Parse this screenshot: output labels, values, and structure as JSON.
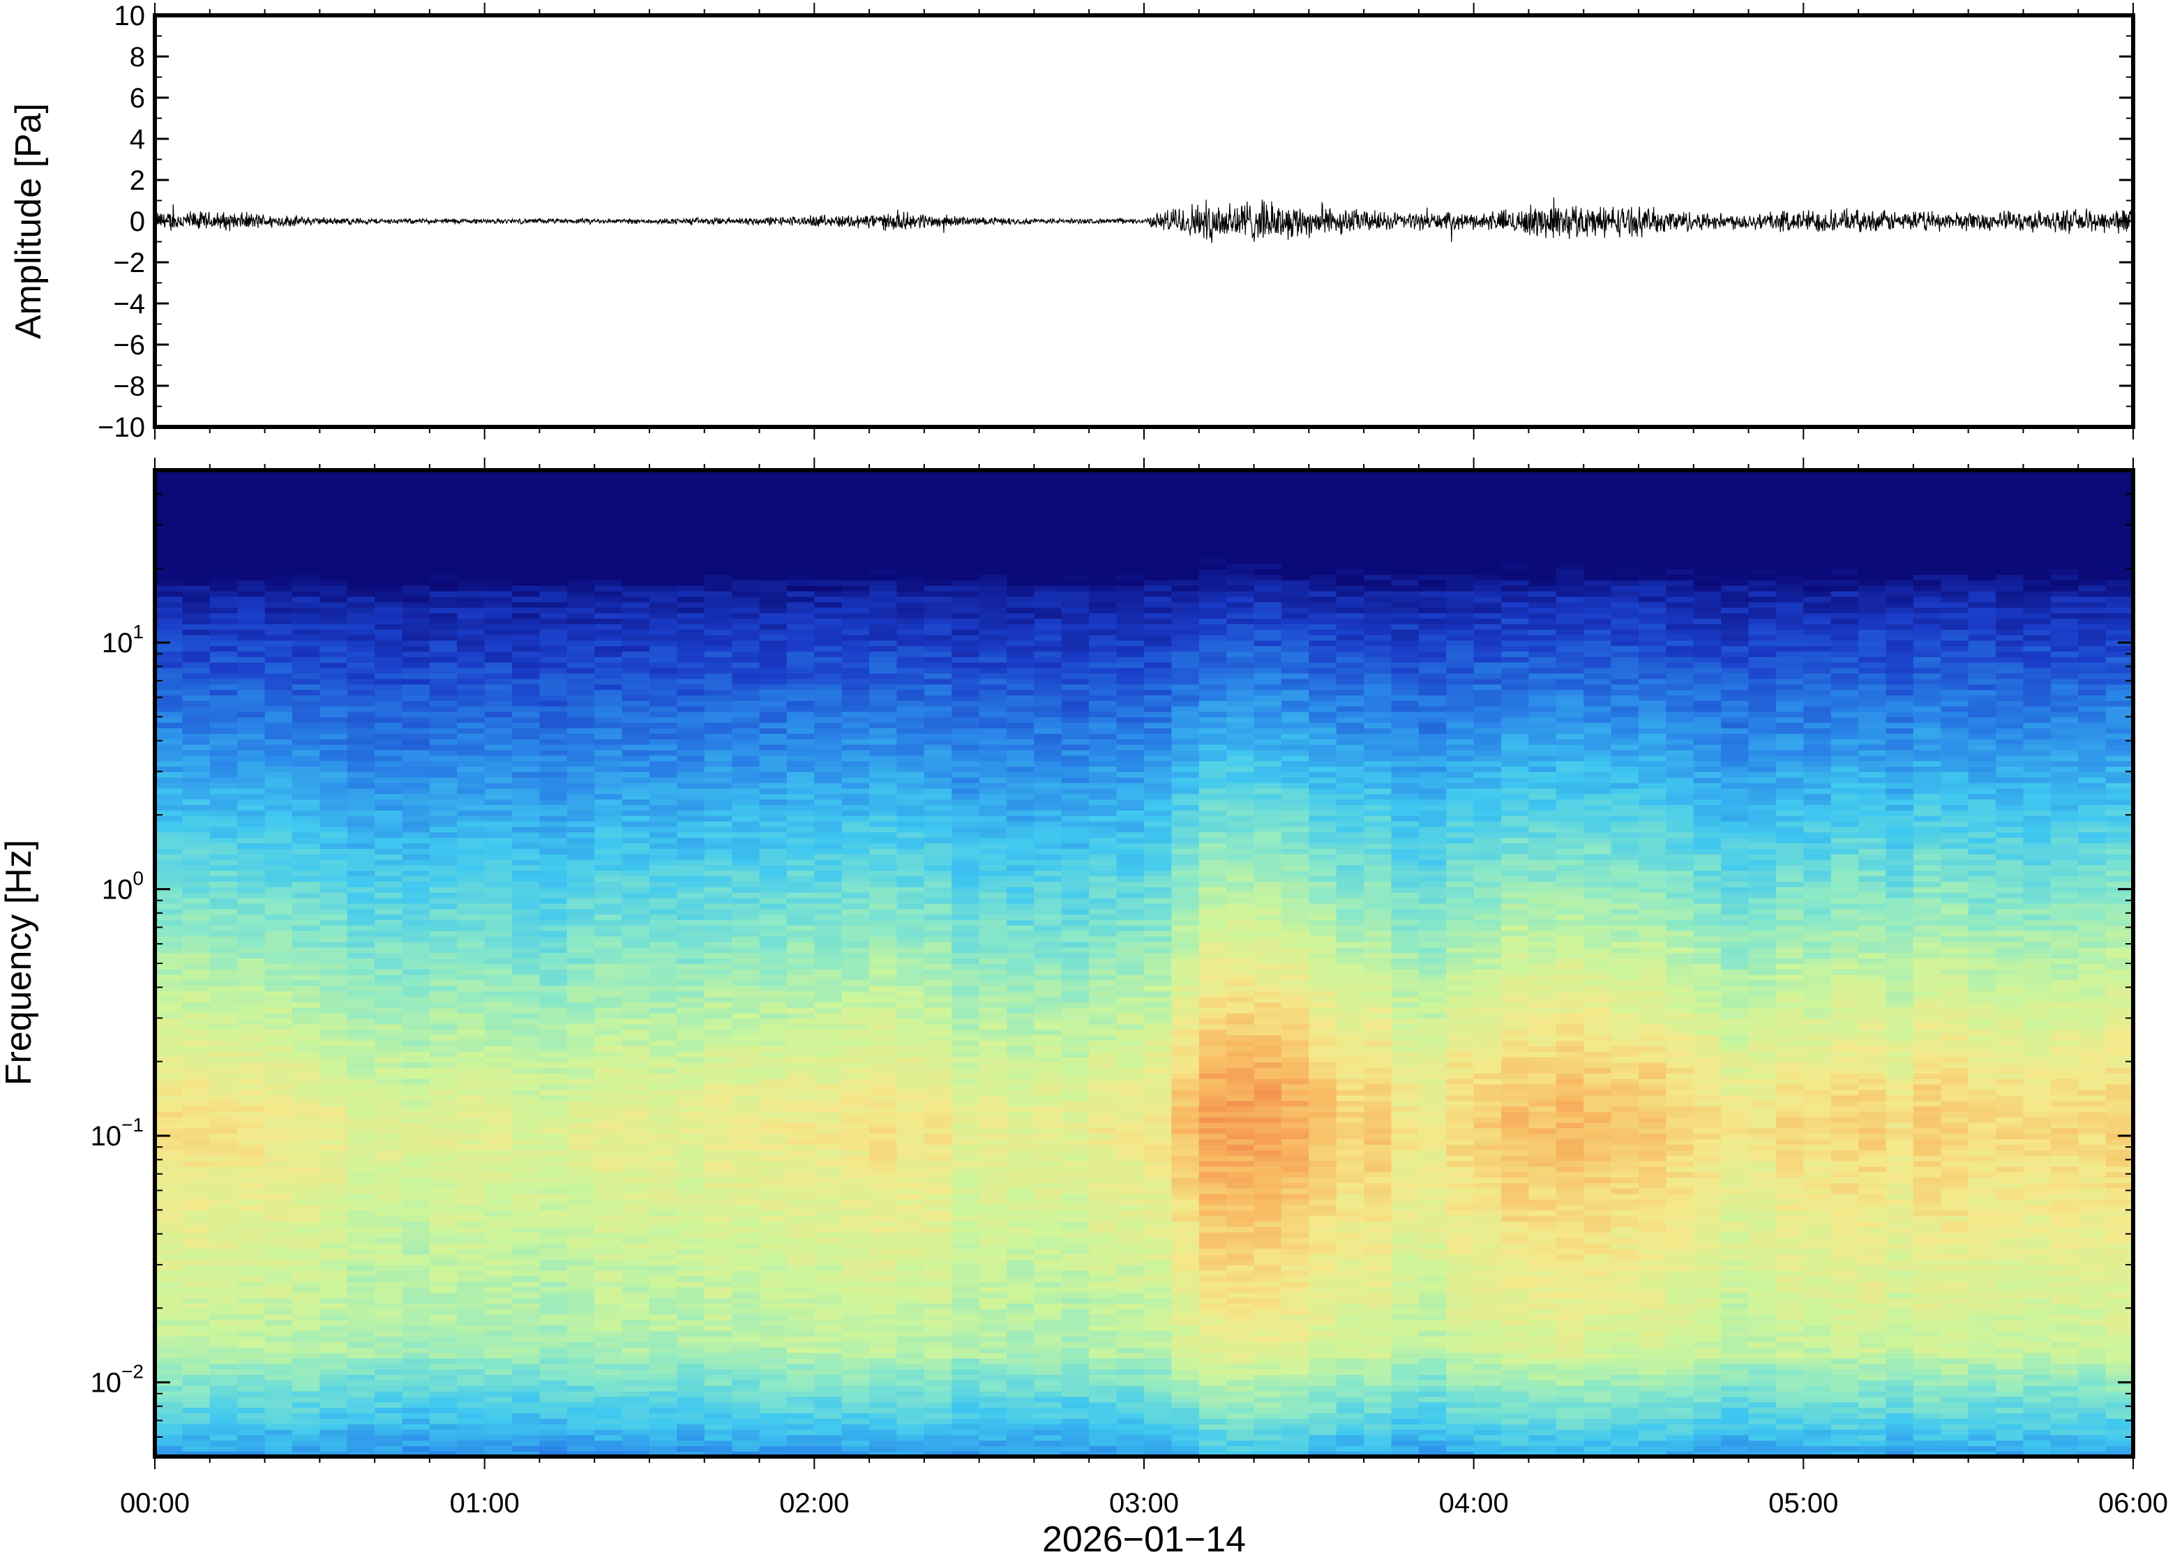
{
  "chart_data": [
    {
      "type": "line",
      "panel": "waveform",
      "ylabel": "Amplitude [Pa]",
      "ylim": [
        -10,
        10
      ],
      "yticks": [
        10,
        8,
        6,
        4,
        2,
        0,
        -2,
        -4,
        -6,
        -8,
        -10
      ],
      "ytick_labels": [
        "10",
        "8",
        "6",
        "4",
        "2",
        "0",
        "−2",
        "−4",
        "−6",
        "−8",
        "−10"
      ],
      "xlim": [
        "00:00",
        "06:00"
      ],
      "line_color": "#000000",
      "series": [
        {
          "x_hours": [
            0.0,
            0.25,
            0.5,
            0.75,
            1.0,
            1.25,
            1.5,
            1.75,
            2.0,
            2.25,
            2.5,
            2.75,
            3.0,
            3.1,
            3.25,
            3.5,
            3.75,
            4.0,
            4.25,
            4.5,
            4.75,
            5.0,
            5.25,
            5.5,
            5.75,
            6.0
          ],
          "envelope": [
            0.4,
            0.35,
            0.15,
            0.1,
            0.1,
            0.1,
            0.1,
            0.15,
            0.2,
            0.35,
            0.15,
            0.1,
            0.1,
            0.6,
            0.9,
            0.6,
            0.35,
            0.3,
            0.7,
            0.55,
            0.3,
            0.45,
            0.4,
            0.35,
            0.4,
            0.5
          ],
          "max_abs": 1.8
        }
      ]
    },
    {
      "type": "heatmap",
      "panel": "spectrogram",
      "ylabel": "Frequency [Hz]",
      "yscale": "log",
      "ylim": [
        0.005,
        50
      ],
      "yticks": [
        0.01,
        0.1,
        1,
        10
      ],
      "ytick_labels": [
        {
          "base": "10",
          "exp": "−2"
        },
        {
          "base": "10",
          "exp": "−1"
        },
        {
          "base": "10",
          "exp": "0"
        },
        {
          "base": "10",
          "exp": "1"
        }
      ],
      "xlabel": "2026−01−14",
      "xticks": [
        "00:00",
        "01:00",
        "02:00",
        "03:00",
        "04:00",
        "05:00",
        "06:00"
      ],
      "colormap": [
        "#0a0a78",
        "#1a3cc8",
        "#2a86e8",
        "#40c8f0",
        "#8ae8c8",
        "#cef59a",
        "#f5e88a",
        "#f8b860",
        "#f28048"
      ],
      "time_bins_hours": [
        0.0,
        0.25,
        0.5,
        0.75,
        1.0,
        1.25,
        1.5,
        1.75,
        2.0,
        2.25,
        2.5,
        2.75,
        3.0,
        3.25,
        3.5,
        3.75,
        4.0,
        4.25,
        4.5,
        4.75,
        5.0,
        5.25,
        5.5,
        5.75,
        6.0
      ],
      "activity": [
        0.5,
        0.45,
        0.25,
        0.1,
        0.12,
        0.22,
        0.25,
        0.3,
        0.35,
        0.55,
        0.2,
        0.25,
        0.3,
        1.0,
        0.85,
        0.5,
        0.45,
        0.85,
        0.7,
        0.4,
        0.55,
        0.5,
        0.6,
        0.55,
        0.6
      ]
    }
  ]
}
